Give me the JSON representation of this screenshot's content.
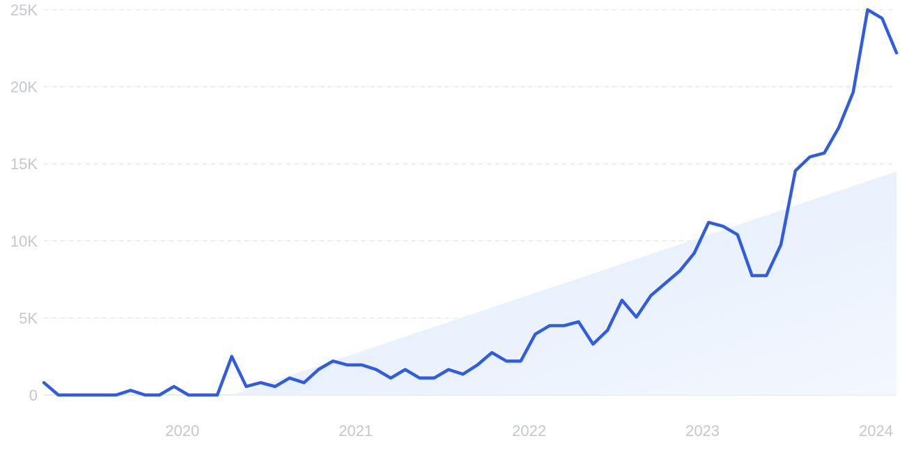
{
  "chart_data": {
    "type": "line",
    "title": "",
    "xlabel": "",
    "ylabel": "",
    "x_tick_labels": [
      "2020",
      "2021",
      "2022",
      "2023",
      "2024"
    ],
    "y_tick_labels": [
      "0",
      "5K",
      "10K",
      "15K",
      "20K",
      "25K"
    ],
    "y_ticks": [
      0,
      5000,
      10000,
      15000,
      20000,
      25000
    ],
    "ylim": [
      0,
      25000
    ],
    "xlim": [
      "2019-09",
      "2024-08"
    ],
    "grid": true,
    "legend": "none",
    "colors": {
      "line": "#2f5ce3",
      "trend_fill": "#dce9fb",
      "grid": "#d9dee8",
      "tick_text": "#c4c7cd"
    },
    "series": [
      {
        "x": [
          "2019-09",
          "2019-10",
          "2019-11",
          "2019-12",
          "2020-01",
          "2020-02",
          "2020-03",
          "2020-04",
          "2020-05",
          "2020-06",
          "2020-07",
          "2020-08",
          "2020-09",
          "2020-10",
          "2020-11",
          "2020-12",
          "2021-01",
          "2021-02",
          "2021-03",
          "2021-04",
          "2021-05",
          "2021-06",
          "2021-07",
          "2021-08",
          "2021-09",
          "2021-10",
          "2021-11",
          "2021-12",
          "2022-01",
          "2022-02",
          "2022-03",
          "2022-04",
          "2022-05",
          "2022-06",
          "2022-07",
          "2022-08",
          "2022-09",
          "2022-10",
          "2022-11",
          "2022-12",
          "2023-01",
          "2023-02",
          "2023-03",
          "2023-04",
          "2023-05",
          "2023-06",
          "2023-07",
          "2023-08",
          "2023-09",
          "2023-10",
          "2023-11",
          "2023-12",
          "2024-01",
          "2024-02",
          "2024-03",
          "2024-04",
          "2024-05",
          "2024-06",
          "2024-07",
          "2024-08"
        ],
        "values": [
          800,
          0,
          0,
          0,
          0,
          0,
          300,
          0,
          0,
          550,
          0,
          0,
          0,
          2500,
          550,
          800,
          550,
          1100,
          800,
          1650,
          2200,
          1950,
          1950,
          1650,
          1100,
          1650,
          1100,
          1100,
          1650,
          1350,
          1950,
          2750,
          2200,
          2200,
          3950,
          4500,
          4500,
          4750,
          3300,
          4200,
          6150,
          5050,
          6450,
          7250,
          8050,
          9200,
          11200,
          10950,
          10400,
          7750,
          7750,
          9750,
          14550,
          15450,
          15700,
          17350,
          19650,
          25000,
          24450,
          22200
        ]
      }
    ],
    "trend": {
      "start": [
        "2020-10",
        0
      ],
      "end": [
        "2024-08",
        14500
      ]
    }
  }
}
